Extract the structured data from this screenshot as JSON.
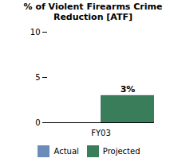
{
  "chart_data": {
    "type": "bar",
    "title": "% of Violent Firearms Crime\nReduction [ATF]",
    "categories": [
      "FY03"
    ],
    "series": [
      {
        "name": "Actual",
        "color": "#6b8cba",
        "values": [
          0
        ],
        "value_labels": [
          null
        ]
      },
      {
        "name": "Projected",
        "color": "#3a7d5a",
        "values": [
          3
        ],
        "value_labels": [
          "3%"
        ]
      }
    ],
    "ylim": [
      0,
      10
    ],
    "yticks": [
      0,
      5,
      10
    ],
    "grid": false,
    "legend": "bottom",
    "data_labels": true
  }
}
